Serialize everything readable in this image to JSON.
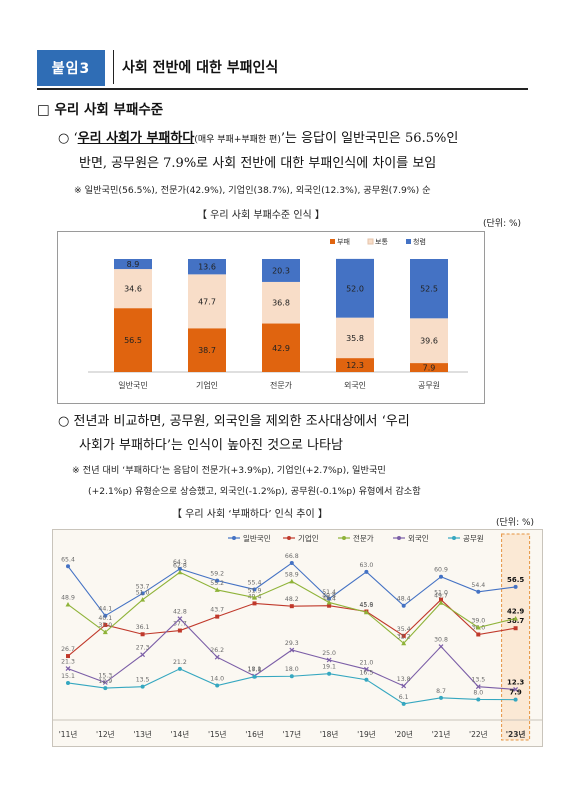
{
  "header": {
    "badge": "붙임3",
    "title": "사회 전반에 대한 부패인식"
  },
  "section": {
    "marker": "□",
    "title": "우리 사회 부패수준"
  },
  "para1": {
    "bullet": "○",
    "quote_open": "‘",
    "emph": "우리 사회가 부패하다",
    "small": "(매우 부패+부패한 편)",
    "rest1": "’는 응답이 일반국민은 56.5%인",
    "line2": "반면, 공무원은 7.9%로 사회 전반에 대한 부패인식에 차이를 보임"
  },
  "note1": "※ 일반국민(56.5%), 전문가(42.9%), 기업인(38.7%), 외국인(12.3%), 공무원(7.9%) 순",
  "chart1_title": "【 우리 사회 부패수준 인식 】",
  "chart1_unit": "(단위: %)",
  "para2": {
    "bullet": "○",
    "line1": "전년과 비교하면, 공무원, 외국인을 제외한 조사대상에서 ‘우리",
    "line2": "사회가 부패하다’는 인식이 높아진 것으로 나타남"
  },
  "note2": {
    "line1": "※ 전년 대비 ‘부패하다’는 응답이 전문가(+3.9%p), 기업인(+2.7%p), 일반국민",
    "line2": "(+2.1%p) 유형순으로 상승했고, 외국인(-1.2%p), 공무원(-0.1%p) 유형에서 감소함"
  },
  "chart2_title": "【 우리 사회 ‘부패하다’ 인식 추이 】",
  "chart2_unit": "(단위: %)",
  "chart_data": [
    {
      "type": "bar",
      "stacked": true,
      "categories": [
        "일반국민",
        "기업인",
        "전문가",
        "외국인",
        "공무원"
      ],
      "series": [
        {
          "name": "부패",
          "color": "#e0640f",
          "values": [
            56.5,
            38.7,
            42.9,
            12.3,
            7.9
          ]
        },
        {
          "name": "보통",
          "color": "#f8ddc8",
          "values": [
            34.6,
            47.7,
            36.8,
            35.8,
            39.6
          ]
        },
        {
          "name": "청렴",
          "color": "#4472c4",
          "values": [
            8.9,
            13.6,
            20.3,
            52.0,
            52.5
          ]
        }
      ],
      "ylim": [
        0,
        100
      ],
      "legend": "top-right"
    },
    {
      "type": "line",
      "x": [
        "'11년",
        "'12년",
        "'13년",
        "'14년",
        "'15년",
        "'16년",
        "'17년",
        "'18년",
        "'19년",
        "'20년",
        "'21년",
        "'22년",
        "'23년"
      ],
      "series": [
        {
          "name": "일반국민",
          "color": "#4472c4",
          "values": [
            65.4,
            44.1,
            53.7,
            64.3,
            59.2,
            55.4,
            66.8,
            51.4,
            63.0,
            48.4,
            60.9,
            54.4,
            56.5
          ]
        },
        {
          "name": "기업인",
          "color": "#c0392b",
          "values": [
            26.7,
            40.1,
            36.1,
            37.7,
            43.7,
            49.4,
            48.2,
            48.4,
            45.9,
            35.4,
            51.0,
            36.0,
            38.7
          ]
        },
        {
          "name": "전문가",
          "color": "#8fb339",
          "values": [
            48.9,
            37.0,
            51.0,
            62.8,
            55.2,
            51.9,
            58.9,
            49.8,
            45.6,
            32.2,
            49.7,
            39.0,
            42.9
          ]
        },
        {
          "name": "외국인",
          "color": "#7b5ea7",
          "values": [
            21.3,
            15.3,
            27.3,
            42.8,
            26.2,
            18.1,
            29.3,
            25.0,
            21.0,
            13.8,
            30.8,
            13.5,
            12.3
          ]
        },
        {
          "name": "공무원",
          "color": "#35a7c0",
          "values": [
            15.1,
            12.9,
            13.5,
            21.2,
            14.0,
            17.8,
            18.0,
            19.1,
            16.5,
            6.1,
            8.7,
            8.0,
            7.9
          ]
        }
      ],
      "ylim": [
        0,
        75
      ],
      "legend": "top"
    }
  ]
}
